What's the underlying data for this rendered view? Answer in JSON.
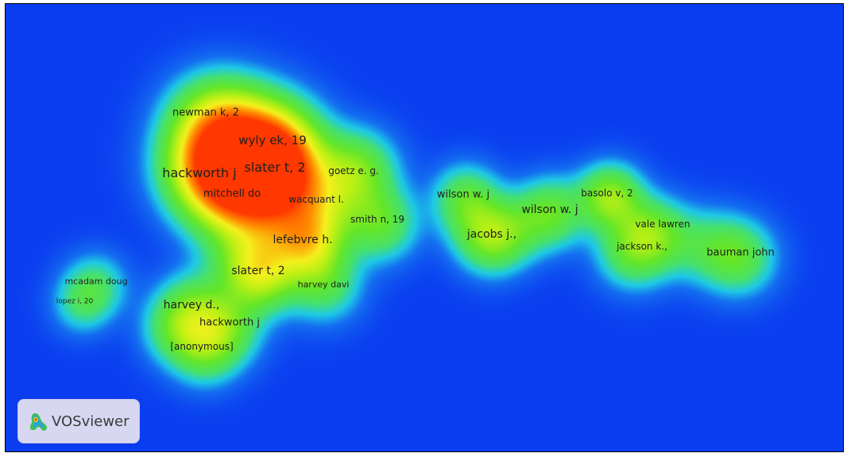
{
  "map": {
    "background": "#0a3cf0",
    "colormap": [
      "#0a3cf0",
      "#1ec8e6",
      "#46e070",
      "#b4ef14",
      "#f2f01e",
      "#ff8a00",
      "#ff3a00"
    ],
    "terms": [
      {
        "label": "newman k, 2",
        "weight": 0.72
      },
      {
        "label": "wyly ek, 19",
        "weight": 1.0
      },
      {
        "label": "hackworth j",
        "weight": 0.95
      },
      {
        "label": "slater t, 2",
        "weight": 1.0
      },
      {
        "label": "goetz e. g.",
        "weight": 0.5
      },
      {
        "label": "mitchell do",
        "weight": 0.8
      },
      {
        "label": "wacquant l.",
        "weight": 0.55
      },
      {
        "label": "smith n, 19",
        "weight": 0.45
      },
      {
        "label": "lefebvre h.",
        "weight": 0.8
      },
      {
        "label": "slater t, 2",
        "weight": 0.72
      },
      {
        "label": "harvey davi",
        "weight": 0.5
      },
      {
        "label": "harvey d.,",
        "weight": 0.45
      },
      {
        "label": "hackworth j",
        "weight": 0.45
      },
      {
        "label": "[anonymous]",
        "weight": 0.35
      },
      {
        "label": "mcadam doug",
        "weight": 0.25
      },
      {
        "label": "lopez i, 20",
        "weight": 0.18
      },
      {
        "label": "wilson w. j",
        "weight": 0.4
      },
      {
        "label": "wilson w. j",
        "weight": 0.5
      },
      {
        "label": "jacobs j.,",
        "weight": 0.62
      },
      {
        "label": "basolo v, 2",
        "weight": 0.68
      },
      {
        "label": "vale lawren",
        "weight": 0.4
      },
      {
        "label": "jackson k.,",
        "weight": 0.42
      },
      {
        "label": "bauman john",
        "weight": 0.42
      }
    ]
  },
  "logo": {
    "text": "VOSviewer",
    "icon": "vosviewer-logo-icon"
  }
}
